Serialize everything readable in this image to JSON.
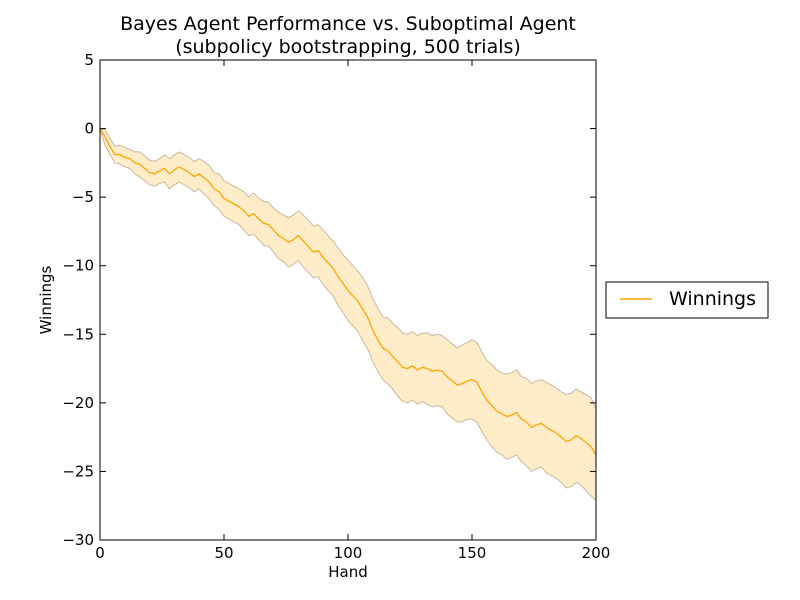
{
  "chart_data": {
    "type": "line",
    "title": "Bayes Agent Performance vs. Suboptimal Agent",
    "subtitle": "(subpolicy bootstrapping, 500 trials)",
    "xlabel": "Hand",
    "ylabel": "Winnings",
    "xlim": [
      0,
      200
    ],
    "ylim": [
      -30,
      5
    ],
    "x_ticks": [
      0,
      50,
      100,
      150,
      200
    ],
    "y_ticks": [
      5,
      0,
      -5,
      -10,
      -15,
      -20,
      -25,
      -30
    ],
    "x_tick_labels": [
      "0",
      "50",
      "100",
      "150",
      "200"
    ],
    "y_tick_labels": [
      "5",
      "0",
      "−5",
      "−10",
      "−15",
      "−20",
      "−25",
      "−30"
    ],
    "grid": false,
    "legend_position": "outside-right",
    "legend": [
      {
        "label": "Winnings",
        "color": "#ffa500"
      }
    ],
    "colors": {
      "line": "#ffa500",
      "band_fill": "#ffecc9",
      "band_edge": "#c9b8a0"
    },
    "series": [
      {
        "name": "Winnings",
        "x": [
          0,
          2,
          4,
          6,
          8,
          10,
          12,
          14,
          16,
          18,
          20,
          22,
          24,
          26,
          28,
          30,
          32,
          34,
          36,
          38,
          40,
          42,
          44,
          46,
          48,
          50,
          52,
          54,
          56,
          58,
          60,
          62,
          64,
          66,
          68,
          70,
          72,
          74,
          76,
          78,
          80,
          82,
          84,
          86,
          88,
          90,
          92,
          94,
          96,
          98,
          100,
          102,
          104,
          106,
          108,
          110,
          112,
          114,
          116,
          118,
          120,
          122,
          124,
          126,
          128,
          130,
          132,
          134,
          136,
          138,
          140,
          142,
          144,
          146,
          148,
          150,
          152,
          154,
          156,
          158,
          160,
          162,
          164,
          166,
          168,
          170,
          172,
          174,
          176,
          178,
          180,
          182,
          184,
          186,
          188,
          190,
          192,
          194,
          196,
          198,
          200
        ],
        "y": [
          0,
          -0.6,
          -1.3,
          -1.9,
          -1.9,
          -2.1,
          -2.2,
          -2.5,
          -2.6,
          -2.9,
          -3.2,
          -3.3,
          -3.1,
          -2.9,
          -3.3,
          -3.0,
          -2.8,
          -3.0,
          -3.2,
          -3.5,
          -3.3,
          -3.6,
          -3.9,
          -4.4,
          -4.6,
          -5.1,
          -5.3,
          -5.5,
          -5.7,
          -6.0,
          -6.4,
          -6.2,
          -6.6,
          -6.9,
          -7.0,
          -7.4,
          -7.8,
          -8.0,
          -8.3,
          -8.1,
          -7.8,
          -8.2,
          -8.6,
          -9.0,
          -8.9,
          -9.4,
          -9.8,
          -10.2,
          -10.8,
          -11.3,
          -11.8,
          -12.2,
          -12.6,
          -13.2,
          -13.8,
          -14.7,
          -15.4,
          -16.0,
          -16.2,
          -16.6,
          -17.0,
          -17.4,
          -17.5,
          -17.3,
          -17.6,
          -17.4,
          -17.5,
          -17.7,
          -17.6,
          -17.7,
          -18.1,
          -18.4,
          -18.7,
          -18.6,
          -18.4,
          -18.3,
          -18.5,
          -19.2,
          -19.8,
          -20.2,
          -20.6,
          -20.8,
          -21.0,
          -20.9,
          -20.7,
          -21.2,
          -21.4,
          -21.8,
          -21.6,
          -21.5,
          -21.8,
          -22.0,
          -22.2,
          -22.5,
          -22.8,
          -22.7,
          -22.4,
          -22.6,
          -22.9,
          -23.2,
          -23.8
        ]
      }
    ],
    "band": {
      "lower": [
        0,
        -1.2,
        -1.9,
        -2.5,
        -2.6,
        -2.8,
        -2.9,
        -3.3,
        -3.5,
        -3.8,
        -4.1,
        -4.2,
        -4.0,
        -3.9,
        -4.4,
        -4.1,
        -3.9,
        -4.1,
        -4.3,
        -4.6,
        -4.4,
        -4.8,
        -5.1,
        -5.6,
        -5.9,
        -6.4,
        -6.6,
        -6.8,
        -7.0,
        -7.4,
        -7.8,
        -7.7,
        -8.1,
        -8.5,
        -8.6,
        -9.0,
        -9.5,
        -9.7,
        -10.1,
        -9.9,
        -9.6,
        -10.1,
        -10.5,
        -10.9,
        -10.8,
        -11.4,
        -11.8,
        -12.2,
        -12.9,
        -13.4,
        -14.0,
        -14.4,
        -14.8,
        -15.5,
        -16.1,
        -17.0,
        -17.7,
        -18.3,
        -18.6,
        -19.0,
        -19.5,
        -19.9,
        -20.0,
        -19.8,
        -20.1,
        -19.9,
        -20.1,
        -20.3,
        -20.2,
        -20.3,
        -20.8,
        -21.1,
        -21.4,
        -21.4,
        -21.2,
        -21.2,
        -21.4,
        -22.1,
        -22.7,
        -23.2,
        -23.6,
        -23.8,
        -24.1,
        -24.0,
        -23.8,
        -24.3,
        -24.6,
        -25.0,
        -24.8,
        -24.7,
        -25.1,
        -25.3,
        -25.5,
        -25.8,
        -26.2,
        -26.1,
        -25.8,
        -26.0,
        -26.4,
        -26.8,
        -27.1
      ],
      "upper": [
        0,
        -0.1,
        -0.7,
        -1.3,
        -1.2,
        -1.4,
        -1.5,
        -1.7,
        -1.7,
        -2.0,
        -2.3,
        -2.4,
        -2.2,
        -1.9,
        -2.2,
        -1.9,
        -1.7,
        -1.9,
        -2.1,
        -2.4,
        -2.2,
        -2.4,
        -2.7,
        -3.2,
        -3.3,
        -3.8,
        -4.0,
        -4.2,
        -4.4,
        -4.6,
        -5.0,
        -4.7,
        -5.1,
        -5.3,
        -5.4,
        -5.8,
        -6.1,
        -6.3,
        -6.5,
        -6.3,
        -6.0,
        -6.3,
        -6.7,
        -7.1,
        -7.0,
        -7.4,
        -7.8,
        -8.2,
        -8.7,
        -9.2,
        -9.6,
        -10.0,
        -10.4,
        -10.9,
        -11.5,
        -12.4,
        -13.1,
        -13.7,
        -13.8,
        -14.2,
        -14.5,
        -14.9,
        -15.0,
        -14.8,
        -15.1,
        -14.9,
        -14.9,
        -15.1,
        -15.0,
        -15.1,
        -15.4,
        -15.7,
        -16.0,
        -15.8,
        -15.6,
        -15.4,
        -15.6,
        -16.3,
        -16.9,
        -17.2,
        -17.6,
        -17.8,
        -17.9,
        -17.8,
        -17.6,
        -18.1,
        -18.2,
        -18.6,
        -18.4,
        -18.3,
        -18.5,
        -18.7,
        -18.9,
        -19.2,
        -19.4,
        -19.3,
        -19.0,
        -19.2,
        -19.4,
        -19.6,
        -20.5
      ]
    }
  }
}
